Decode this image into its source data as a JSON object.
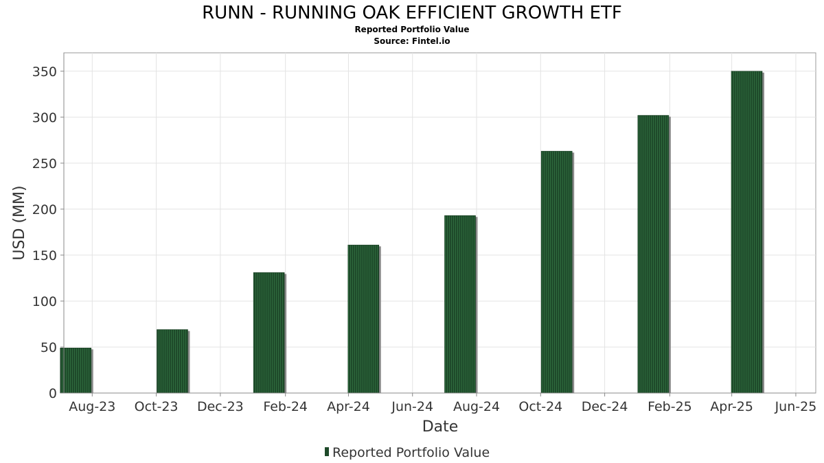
{
  "chart_data": {
    "type": "bar",
    "title": "RUNN - RUNNING OAK EFFICIENT GROWTH ETF",
    "subtitle": "Reported Portfolio Value",
    "source": "Source: Fintel.io",
    "xlabel": "Date",
    "ylabel": "USD (MM)",
    "x_start": "2023-07-05",
    "x_end": "2025-06-20",
    "x_ticks": [
      {
        "label": "Aug-23",
        "date": "2023-08-01"
      },
      {
        "label": "Oct-23",
        "date": "2023-10-01"
      },
      {
        "label": "Dec-23",
        "date": "2023-12-01"
      },
      {
        "label": "Feb-24",
        "date": "2024-02-01"
      },
      {
        "label": "Apr-24",
        "date": "2024-04-01"
      },
      {
        "label": "Jun-24",
        "date": "2024-06-01"
      },
      {
        "label": "Aug-24",
        "date": "2024-08-01"
      },
      {
        "label": "Oct-24",
        "date": "2024-10-01"
      },
      {
        "label": "Dec-24",
        "date": "2024-12-01"
      },
      {
        "label": "Feb-25",
        "date": "2025-02-01"
      },
      {
        "label": "Apr-25",
        "date": "2025-04-01"
      },
      {
        "label": "Jun-25",
        "date": "2025-06-01"
      }
    ],
    "ylim": [
      0,
      370
    ],
    "y_ticks": [
      0,
      50,
      100,
      150,
      200,
      250,
      300,
      350
    ],
    "grid": true,
    "legend": "bottom-center",
    "series": [
      {
        "name": "Reported Portfolio Value",
        "color": "#1e4a2a",
        "points": [
          {
            "date": "2023-07-31",
            "value": 49
          },
          {
            "date": "2023-10-31",
            "value": 69
          },
          {
            "date": "2024-01-31",
            "value": 131
          },
          {
            "date": "2024-04-30",
            "value": 161
          },
          {
            "date": "2024-07-31",
            "value": 193
          },
          {
            "date": "2024-10-31",
            "value": 263
          },
          {
            "date": "2025-01-31",
            "value": 302
          },
          {
            "date": "2025-04-30",
            "value": 350
          }
        ]
      }
    ]
  }
}
